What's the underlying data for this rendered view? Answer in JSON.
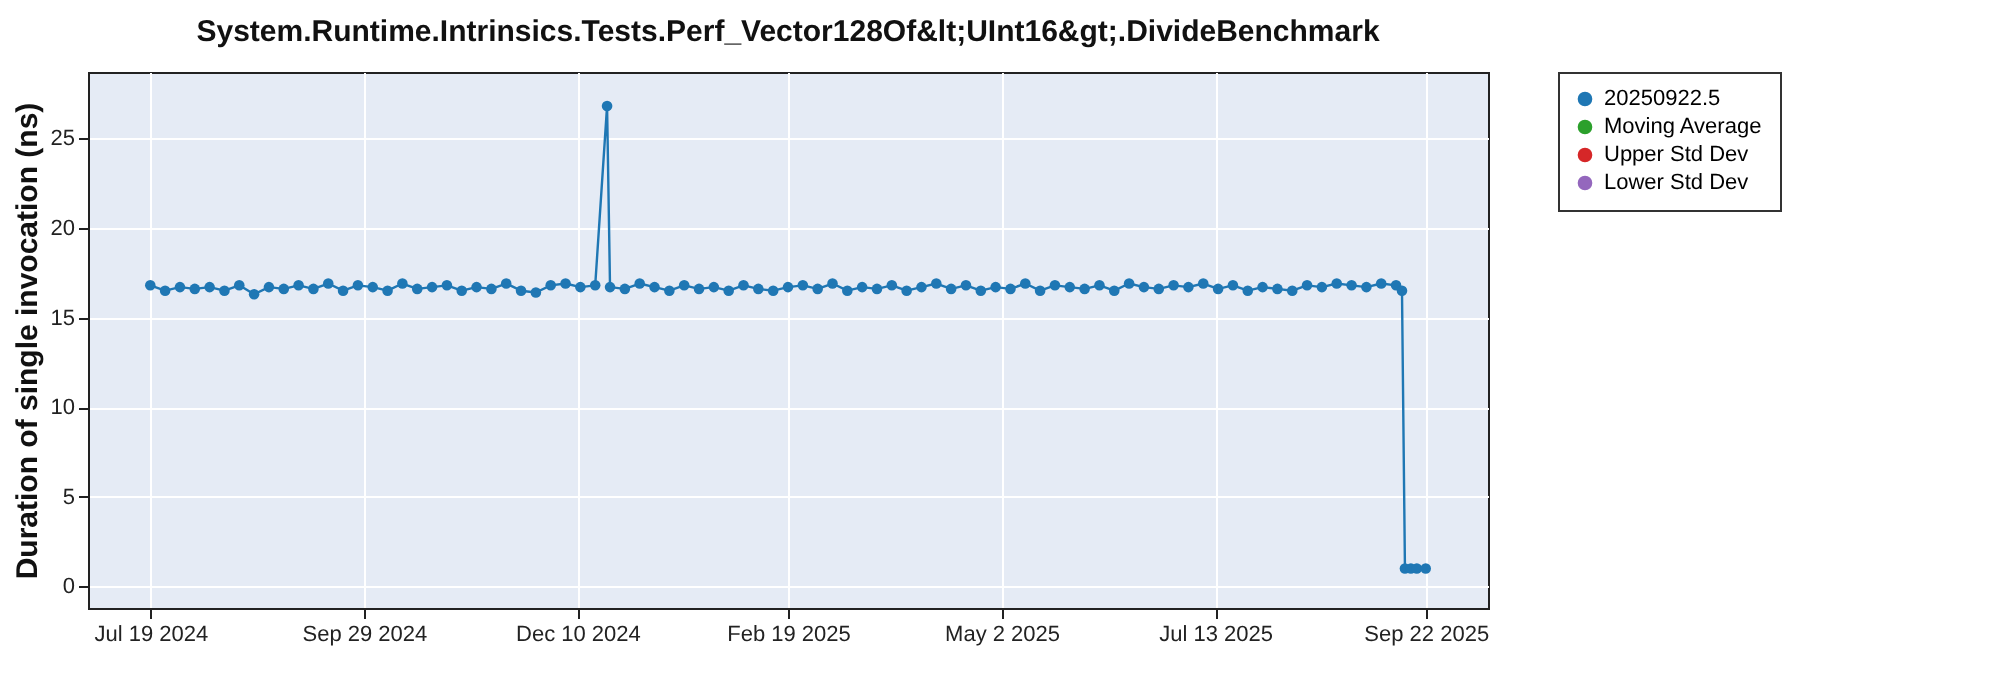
{
  "chart_data": {
    "type": "line",
    "title": "System.Runtime.Intrinsics.Tests.Perf_Vector128Of&lt;UInt16&gt;.DivideBenchmark",
    "ylabel": "Duration of single invocation (ns)",
    "xlim": [
      "2024-06-28",
      "2025-10-13"
    ],
    "xticks": [
      {
        "value": "2024-07-19",
        "label": "Jul 19 2024"
      },
      {
        "value": "2024-09-29",
        "label": "Sep 29 2024"
      },
      {
        "value": "2024-12-10",
        "label": "Dec 10 2024"
      },
      {
        "value": "2025-02-19",
        "label": "Feb 19 2025"
      },
      {
        "value": "2025-05-02",
        "label": "May 2 2025"
      },
      {
        "value": "2025-07-13",
        "label": "Jul 13 2025"
      },
      {
        "value": "2025-09-22",
        "label": "Sep 22 2025"
      }
    ],
    "ylim": [
      -1.2,
      28.7
    ],
    "yticks": [
      0,
      5,
      10,
      15,
      20,
      25
    ],
    "grid": true,
    "legend": "right",
    "marker": "circle",
    "line_style": "solid",
    "series": [
      {
        "name": "20250922.5",
        "color": "#1f77b4",
        "x": [
          "2024-07-19",
          "2024-07-24",
          "2024-07-29",
          "2024-08-03",
          "2024-08-08",
          "2024-08-13",
          "2024-08-18",
          "2024-08-23",
          "2024-08-28",
          "2024-09-02",
          "2024-09-07",
          "2024-09-12",
          "2024-09-17",
          "2024-09-22",
          "2024-09-27",
          "2024-10-02",
          "2024-10-07",
          "2024-10-12",
          "2024-10-17",
          "2024-10-22",
          "2024-10-27",
          "2024-11-01",
          "2024-11-06",
          "2024-11-11",
          "2024-11-16",
          "2024-11-21",
          "2024-11-26",
          "2024-12-01",
          "2024-12-06",
          "2024-12-11",
          "2024-12-16",
          "2024-12-20",
          "2024-12-21",
          "2024-12-26",
          "2024-12-31",
          "2025-01-05",
          "2025-01-10",
          "2025-01-15",
          "2025-01-20",
          "2025-01-25",
          "2025-01-30",
          "2025-02-04",
          "2025-02-09",
          "2025-02-14",
          "2025-02-19",
          "2025-02-24",
          "2025-03-01",
          "2025-03-06",
          "2025-03-11",
          "2025-03-16",
          "2025-03-21",
          "2025-03-26",
          "2025-03-31",
          "2025-04-05",
          "2025-04-10",
          "2025-04-15",
          "2025-04-20",
          "2025-04-25",
          "2025-04-30",
          "2025-05-05",
          "2025-05-10",
          "2025-05-15",
          "2025-05-20",
          "2025-05-25",
          "2025-05-30",
          "2025-06-04",
          "2025-06-09",
          "2025-06-14",
          "2025-06-19",
          "2025-06-24",
          "2025-06-29",
          "2025-07-04",
          "2025-07-09",
          "2025-07-14",
          "2025-07-19",
          "2025-07-24",
          "2025-07-29",
          "2025-08-03",
          "2025-08-08",
          "2025-08-13",
          "2025-08-18",
          "2025-08-23",
          "2025-08-28",
          "2025-09-02",
          "2025-09-07",
          "2025-09-12",
          "2025-09-14",
          "2025-09-15",
          "2025-09-17",
          "2025-09-19",
          "2025-09-22"
        ],
        "values": [
          16.8,
          16.5,
          16.7,
          16.6,
          16.7,
          16.5,
          16.8,
          16.3,
          16.7,
          16.6,
          16.8,
          16.6,
          16.9,
          16.5,
          16.8,
          16.7,
          16.5,
          16.9,
          16.6,
          16.7,
          16.8,
          16.5,
          16.7,
          16.6,
          16.9,
          16.5,
          16.4,
          16.8,
          16.9,
          16.7,
          16.8,
          26.8,
          16.7,
          16.6,
          16.9,
          16.7,
          16.5,
          16.8,
          16.6,
          16.7,
          16.5,
          16.8,
          16.6,
          16.5,
          16.7,
          16.8,
          16.6,
          16.9,
          16.5,
          16.7,
          16.6,
          16.8,
          16.5,
          16.7,
          16.9,
          16.6,
          16.8,
          16.5,
          16.7,
          16.6,
          16.9,
          16.5,
          16.8,
          16.7,
          16.6,
          16.8,
          16.5,
          16.9,
          16.7,
          16.6,
          16.8,
          16.7,
          16.9,
          16.6,
          16.8,
          16.5,
          16.7,
          16.6,
          16.5,
          16.8,
          16.7,
          16.9,
          16.8,
          16.7,
          16.9,
          16.8,
          16.5,
          1.0,
          1.0,
          1.0,
          1.0
        ]
      },
      {
        "name": "Moving Average",
        "color": "#2ca02c"
      },
      {
        "name": "Upper Std Dev",
        "color": "#d62728"
      },
      {
        "name": "Lower Std Dev",
        "color": "#9467bd"
      }
    ]
  }
}
